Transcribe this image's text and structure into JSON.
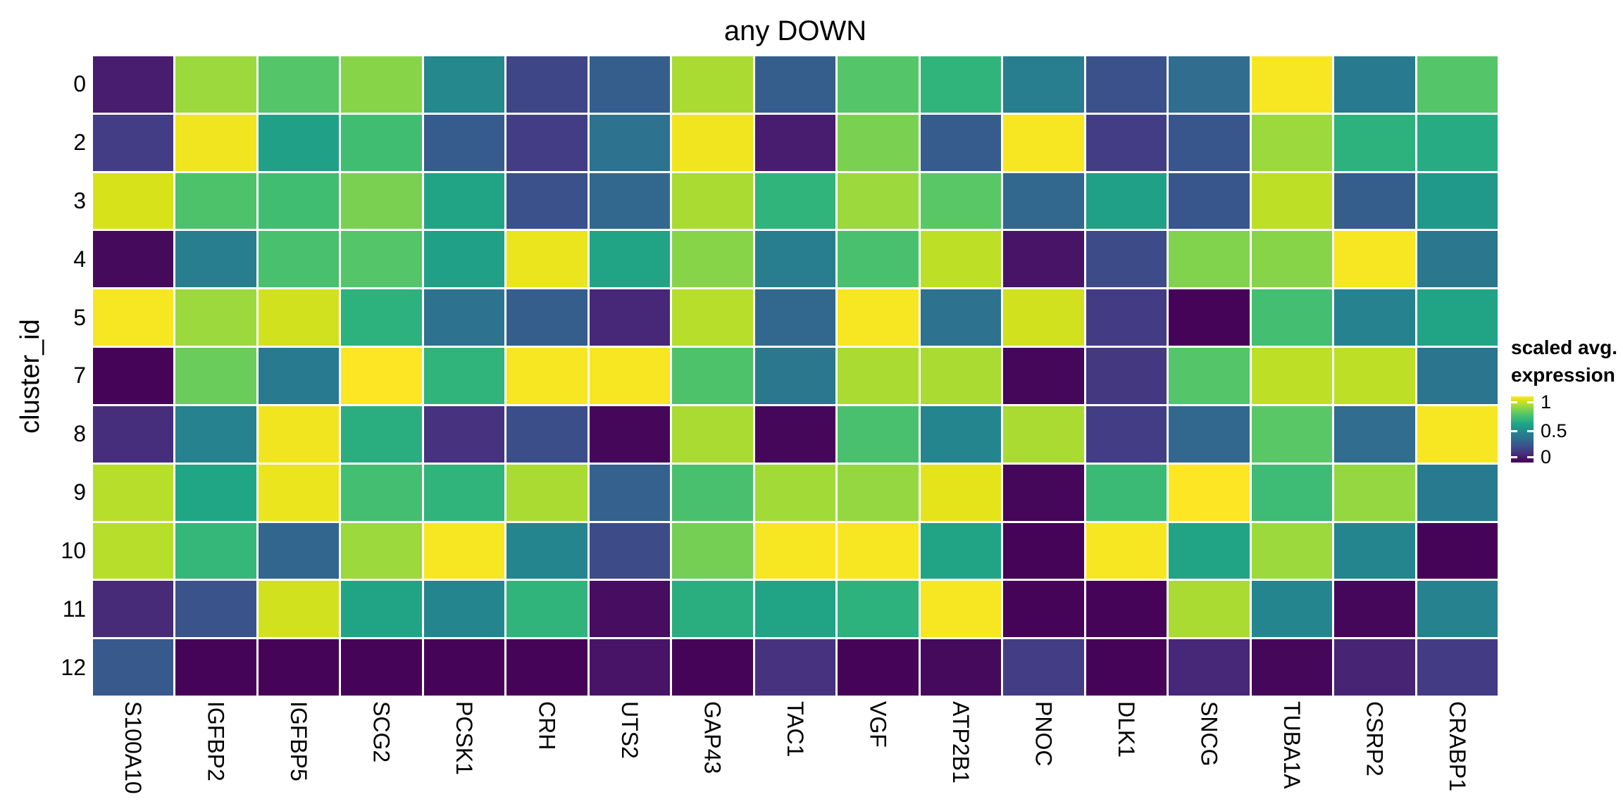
{
  "title": "any DOWN",
  "y_axis": {
    "label": "cluster_id"
  },
  "legend": {
    "title_line1": "scaled avg.",
    "title_line2": "expression",
    "ticks": [
      "1",
      "0.5",
      "0"
    ]
  },
  "colors": {
    "background": "#ffffff",
    "text": "#000000",
    "viridis_min": "#440154",
    "viridis_mid": "#21918c",
    "viridis_max": "#fde725"
  },
  "chart_data": {
    "type": "heatmap",
    "title": "any DOWN",
    "xlabel": "",
    "ylabel": "cluster_id",
    "legend_title": "scaled avg. expression",
    "palette": "viridis",
    "value_range": [
      0,
      1
    ],
    "grid": false,
    "legend_position": "right",
    "columns": [
      "S100A10",
      "IGFBP2",
      "IGFBP5",
      "SCG2",
      "PCSK1",
      "CRH",
      "UTS2",
      "GAP43",
      "TAC1",
      "VGF",
      "ATP2B1",
      "PNOC",
      "DLK1",
      "SNCG",
      "TUBA1A",
      "CSRP2",
      "CRABP1"
    ],
    "rows": [
      "0",
      "2",
      "3",
      "4",
      "5",
      "7",
      "8",
      "9",
      "10",
      "11",
      "12"
    ],
    "values": [
      [
        0.08,
        0.85,
        0.73,
        0.82,
        0.47,
        0.21,
        0.3,
        0.87,
        0.3,
        0.73,
        0.64,
        0.43,
        0.25,
        0.36,
        0.99,
        0.42,
        0.73
      ],
      [
        0.18,
        0.98,
        0.57,
        0.69,
        0.29,
        0.18,
        0.38,
        0.98,
        0.08,
        0.8,
        0.29,
        0.99,
        0.18,
        0.27,
        0.85,
        0.63,
        0.61
      ],
      [
        0.94,
        0.72,
        0.69,
        0.8,
        0.58,
        0.25,
        0.34,
        0.87,
        0.64,
        0.85,
        0.74,
        0.34,
        0.57,
        0.27,
        0.9,
        0.3,
        0.53
      ],
      [
        0.03,
        0.43,
        0.71,
        0.73,
        0.57,
        0.97,
        0.58,
        0.82,
        0.43,
        0.71,
        0.9,
        0.06,
        0.23,
        0.81,
        0.82,
        0.99,
        0.4
      ],
      [
        0.99,
        0.85,
        0.93,
        0.63,
        0.38,
        0.3,
        0.11,
        0.89,
        0.34,
        0.99,
        0.38,
        0.93,
        0.17,
        0.01,
        0.7,
        0.45,
        0.58
      ],
      [
        0.01,
        0.77,
        0.42,
        1.0,
        0.64,
        0.99,
        0.99,
        0.72,
        0.4,
        0.87,
        0.87,
        0.02,
        0.16,
        0.73,
        0.9,
        0.9,
        0.39
      ],
      [
        0.13,
        0.45,
        0.98,
        0.62,
        0.14,
        0.24,
        0.02,
        0.87,
        0.02,
        0.71,
        0.46,
        0.87,
        0.18,
        0.34,
        0.74,
        0.36,
        0.99
      ],
      [
        0.89,
        0.59,
        0.97,
        0.7,
        0.64,
        0.87,
        0.31,
        0.71,
        0.86,
        0.84,
        0.96,
        0.02,
        0.67,
        1.0,
        0.68,
        0.84,
        0.42
      ],
      [
        0.89,
        0.65,
        0.33,
        0.85,
        0.99,
        0.46,
        0.23,
        0.79,
        0.99,
        0.99,
        0.58,
        0.01,
        0.99,
        0.58,
        0.85,
        0.46,
        0.01
      ],
      [
        0.12,
        0.26,
        0.93,
        0.58,
        0.46,
        0.64,
        0.04,
        0.62,
        0.58,
        0.63,
        0.99,
        0.01,
        0.01,
        0.87,
        0.46,
        0.02,
        0.45
      ],
      [
        0.28,
        0.01,
        0.01,
        0.01,
        0.01,
        0.01,
        0.06,
        0.01,
        0.14,
        0.01,
        0.03,
        0.18,
        0.01,
        0.11,
        0.02,
        0.1,
        0.17
      ]
    ]
  }
}
